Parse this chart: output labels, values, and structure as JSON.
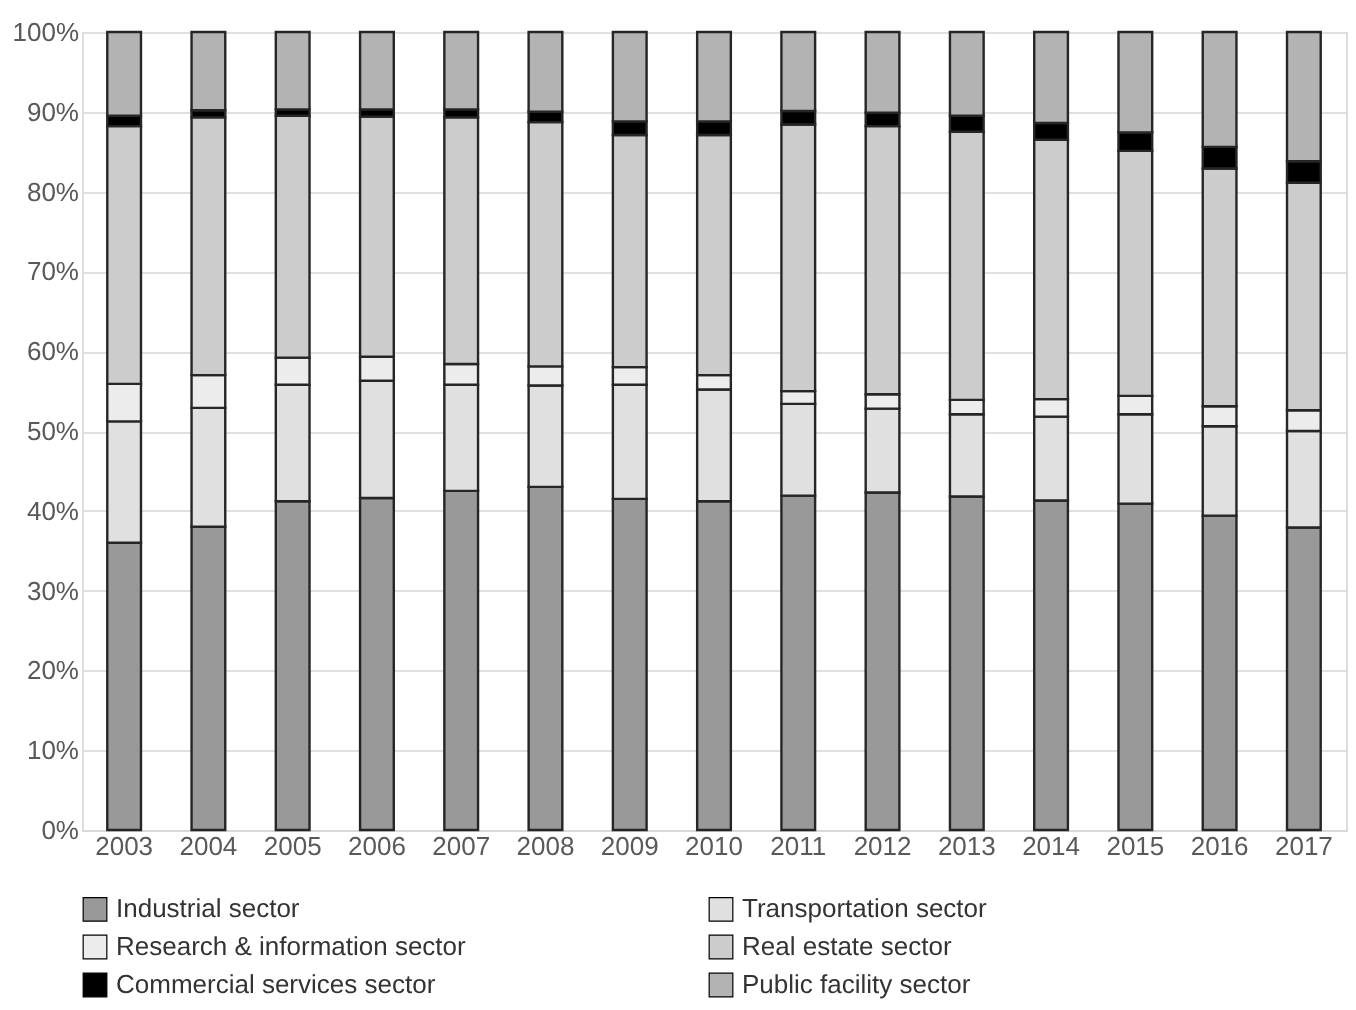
{
  "chart_data": {
    "type": "bar",
    "stacked": true,
    "categories": [
      "2003",
      "2004",
      "2005",
      "2006",
      "2007",
      "2008",
      "2009",
      "2010",
      "2011",
      "2012",
      "2013",
      "2014",
      "2015",
      "2016",
      "2017"
    ],
    "series": [
      {
        "name": "Industrial sector",
        "color": "#999999",
        "values": [
          36,
          38,
          41.2,
          41.6,
          42.5,
          43,
          41.5,
          41.2,
          41.9,
          42.3,
          41.8,
          41.3,
          40.9,
          39.4,
          37.9
        ]
      },
      {
        "name": "Transportation sector",
        "color": "#e0e0e0",
        "values": [
          15.2,
          14.9,
          14.6,
          14.7,
          13.3,
          12.7,
          14.3,
          14.0,
          11.5,
          10.5,
          10.3,
          10.5,
          11.2,
          11.2,
          12.1
        ]
      },
      {
        "name": "Research & information sector",
        "color": "#ececec",
        "values": [
          4.7,
          4.1,
          3.4,
          3.0,
          2.6,
          2.4,
          2.2,
          1.8,
          1.6,
          1.8,
          1.8,
          2.2,
          2.3,
          2.5,
          2.6
        ]
      },
      {
        "name": "Real estate sector",
        "color": "#cccccc",
        "values": [
          32.3,
          32.3,
          30.3,
          30.1,
          30.9,
          30.6,
          29.1,
          30.1,
          33.4,
          33.6,
          33.6,
          32.5,
          30.7,
          29.8,
          28.5
        ]
      },
      {
        "name": "Commercial services sector",
        "color": "#000000",
        "values": [
          1.3,
          0.9,
          0.8,
          0.9,
          1.0,
          1.3,
          1.7,
          1.7,
          1.7,
          1.7,
          2.0,
          2.1,
          2.3,
          2.7,
          2.7
        ]
      },
      {
        "name": "Public facility sector",
        "color": "#b3b3b3",
        "values": [
          10.5,
          9.8,
          9.7,
          9.7,
          9.7,
          10.0,
          11.2,
          11.2,
          9.9,
          10.1,
          10.5,
          11.4,
          12.6,
          14.4,
          16.2
        ]
      }
    ],
    "ylim": [
      0,
      100
    ],
    "yticks": [
      {
        "value": 0,
        "label": "0%"
      },
      {
        "value": 10,
        "label": "10%"
      },
      {
        "value": 20,
        "label": "20%"
      },
      {
        "value": 30,
        "label": "30%"
      },
      {
        "value": 40,
        "label": "40%"
      },
      {
        "value": 50,
        "label": "50%"
      },
      {
        "value": 60,
        "label": "60%"
      },
      {
        "value": 70,
        "label": "70%"
      },
      {
        "value": 80,
        "label": "80%"
      },
      {
        "value": 90,
        "label": "90%"
      },
      {
        "value": 100,
        "label": "100%"
      }
    ],
    "grid": "y",
    "legend": "bottom"
  }
}
